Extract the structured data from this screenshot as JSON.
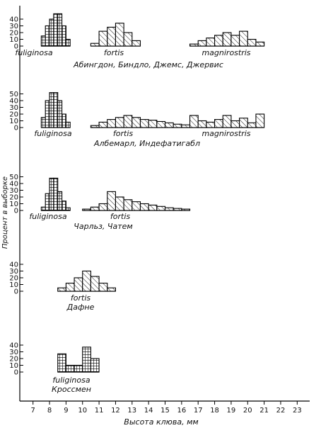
{
  "chart_data": {
    "type": "bar",
    "ylabel": "Процент в выборке",
    "xlabel": "Высота клюва, мм",
    "xlim": [
      6.5,
      23.5
    ],
    "x_ticks": [
      7,
      8,
      9,
      10,
      11,
      12,
      13,
      14,
      15,
      16,
      17,
      18,
      19,
      20,
      21,
      22,
      23
    ],
    "ylim": [
      0,
      50
    ],
    "panels": [
      {
        "islands": "Абингдон, Биндло, Джемс, Джервис",
        "y_ticks": [
          10,
          20,
          30,
          40
        ],
        "series": [
          {
            "name": "fuliginosa",
            "pattern": "grid",
            "bin_width": 0.25,
            "start": 7.5,
            "values": [
              15,
              30,
              40,
              48,
              48,
              30,
              10
            ]
          },
          {
            "name": "fortis",
            "pattern": "hatch",
            "bin_width": 0.5,
            "start": 10.5,
            "values": [
              4,
              22,
              28,
              34,
              20,
              8
            ]
          },
          {
            "name": "magnirostris",
            "pattern": "hatch",
            "bin_width": 0.5,
            "start": 16.5,
            "values": [
              3,
              8,
              12,
              16,
              20,
              16,
              22,
              10,
              6
            ]
          }
        ]
      },
      {
        "islands": "Албемарл, Индефатигабл",
        "y_ticks": [
          10,
          20,
          30,
          40,
          50
        ],
        "series": [
          {
            "name": "fuliginosa",
            "pattern": "grid",
            "bin_width": 0.25,
            "start": 7.5,
            "values": [
              15,
              40,
              52,
              52,
              40,
              20,
              8
            ]
          },
          {
            "name": "fortis",
            "pattern": "hatch",
            "bin_width": 0.5,
            "start": 10.5,
            "values": [
              3,
              8,
              12,
              15,
              18,
              15,
              12,
              11,
              9,
              7,
              5,
              4
            ]
          },
          {
            "name": "magnirostris",
            "pattern": "hatch",
            "bin_width": 0.5,
            "start": 16.5,
            "values": [
              18,
              10,
              8,
              12,
              18,
              10,
              14,
              7,
              20
            ]
          }
        ]
      },
      {
        "islands": "Чарльз, Чатем",
        "y_ticks": [
          10,
          20,
          30,
          40,
          50
        ],
        "series": [
          {
            "name": "fuliginosa",
            "pattern": "grid",
            "bin_width": 0.25,
            "start": 7.5,
            "values": [
              5,
              25,
              48,
              48,
              28,
              14,
              4
            ]
          },
          {
            "name": "fortis",
            "pattern": "hatch",
            "bin_width": 0.5,
            "start": 10.0,
            "values": [
              2,
              5,
              10,
              28,
              20,
              16,
              13,
              10,
              8,
              6,
              4,
              3,
              2
            ]
          }
        ]
      },
      {
        "islands": "Дафне",
        "y_ticks": [
          10,
          20,
          30,
          40
        ],
        "series": [
          {
            "name": "fortis",
            "pattern": "hatch",
            "bin_width": 0.5,
            "start": 8.5,
            "values": [
              5,
              12,
              20,
              30,
              22,
              12,
              5
            ]
          }
        ]
      },
      {
        "islands": "Кроссмен",
        "y_ticks": [
          10,
          20,
          30,
          40
        ],
        "series": [
          {
            "name": "fuliginosa",
            "pattern": "grid",
            "bin_width": 0.5,
            "start": 8.5,
            "values": [
              27,
              10,
              10,
              37,
              20
            ]
          }
        ]
      }
    ]
  }
}
